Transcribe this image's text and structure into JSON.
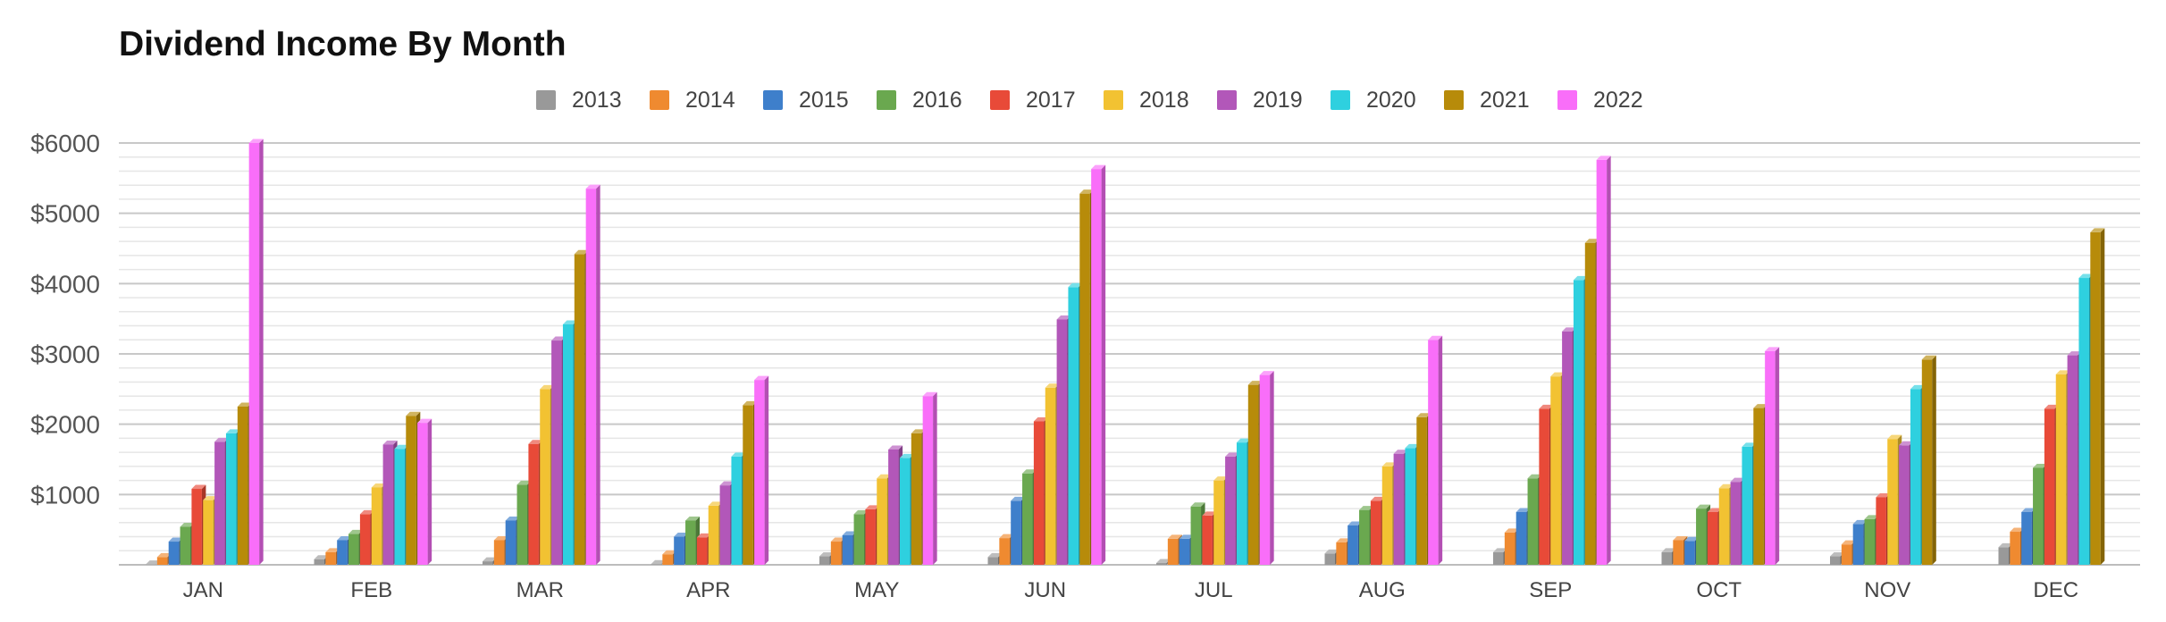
{
  "chart_data": {
    "type": "bar",
    "title": "Dividend Income By Month",
    "xlabel": "",
    "ylabel": "",
    "ylim": [
      0,
      6000
    ],
    "yticks": [
      "$1000",
      "$2000",
      "$3000",
      "$4000",
      "$5000",
      "$6000"
    ],
    "grid": true,
    "legend_position": "top",
    "categories": [
      "JAN",
      "FEB",
      "MAR",
      "APR",
      "MAY",
      "JUN",
      "JUL",
      "AUG",
      "SEP",
      "OCT",
      "NOV",
      "DEC"
    ],
    "series": [
      {
        "name": "2013",
        "color": "#999999",
        "values": [
          5,
          80,
          50,
          10,
          120,
          110,
          25,
          160,
          180,
          180,
          120,
          250
        ]
      },
      {
        "name": "2014",
        "color": "#ef8a30",
        "values": [
          110,
          180,
          350,
          150,
          330,
          380,
          370,
          320,
          460,
          350,
          290,
          470
        ]
      },
      {
        "name": "2015",
        "color": "#3e7fcb",
        "values": [
          330,
          350,
          630,
          400,
          420,
          910,
          370,
          560,
          750,
          340,
          580,
          750
        ]
      },
      {
        "name": "2016",
        "color": "#6aa84f",
        "values": [
          540,
          440,
          1140,
          630,
          720,
          1300,
          830,
          780,
          1230,
          800,
          650,
          1380
        ]
      },
      {
        "name": "2017",
        "color": "#e84a38",
        "values": [
          1080,
          720,
          1720,
          390,
          790,
          2040,
          700,
          910,
          2220,
          750,
          960,
          2220
        ]
      },
      {
        "name": "2018",
        "color": "#f2c232",
        "values": [
          920,
          1100,
          2500,
          840,
          1230,
          2520,
          1200,
          1400,
          2680,
          1090,
          1790,
          2710
        ]
      },
      {
        "name": "2019",
        "color": "#b257b9",
        "values": [
          1750,
          1710,
          3190,
          1130,
          1640,
          3490,
          1540,
          1580,
          3320,
          1180,
          1700,
          2980
        ]
      },
      {
        "name": "2020",
        "color": "#2ed0df",
        "values": [
          1870,
          1650,
          3420,
          1540,
          1520,
          3950,
          1740,
          1660,
          4050,
          1680,
          2500,
          4080
        ]
      },
      {
        "name": "2021",
        "color": "#b78b0a",
        "values": [
          2250,
          2120,
          4420,
          2270,
          1870,
          5280,
          2560,
          2100,
          4580,
          2230,
          2920,
          4730
        ]
      },
      {
        "name": "2022",
        "color": "#f96ef9",
        "values": [
          6000,
          2020,
          5350,
          2630,
          2400,
          5630,
          2700,
          3200,
          5760,
          3040,
          0,
          0
        ]
      }
    ]
  }
}
